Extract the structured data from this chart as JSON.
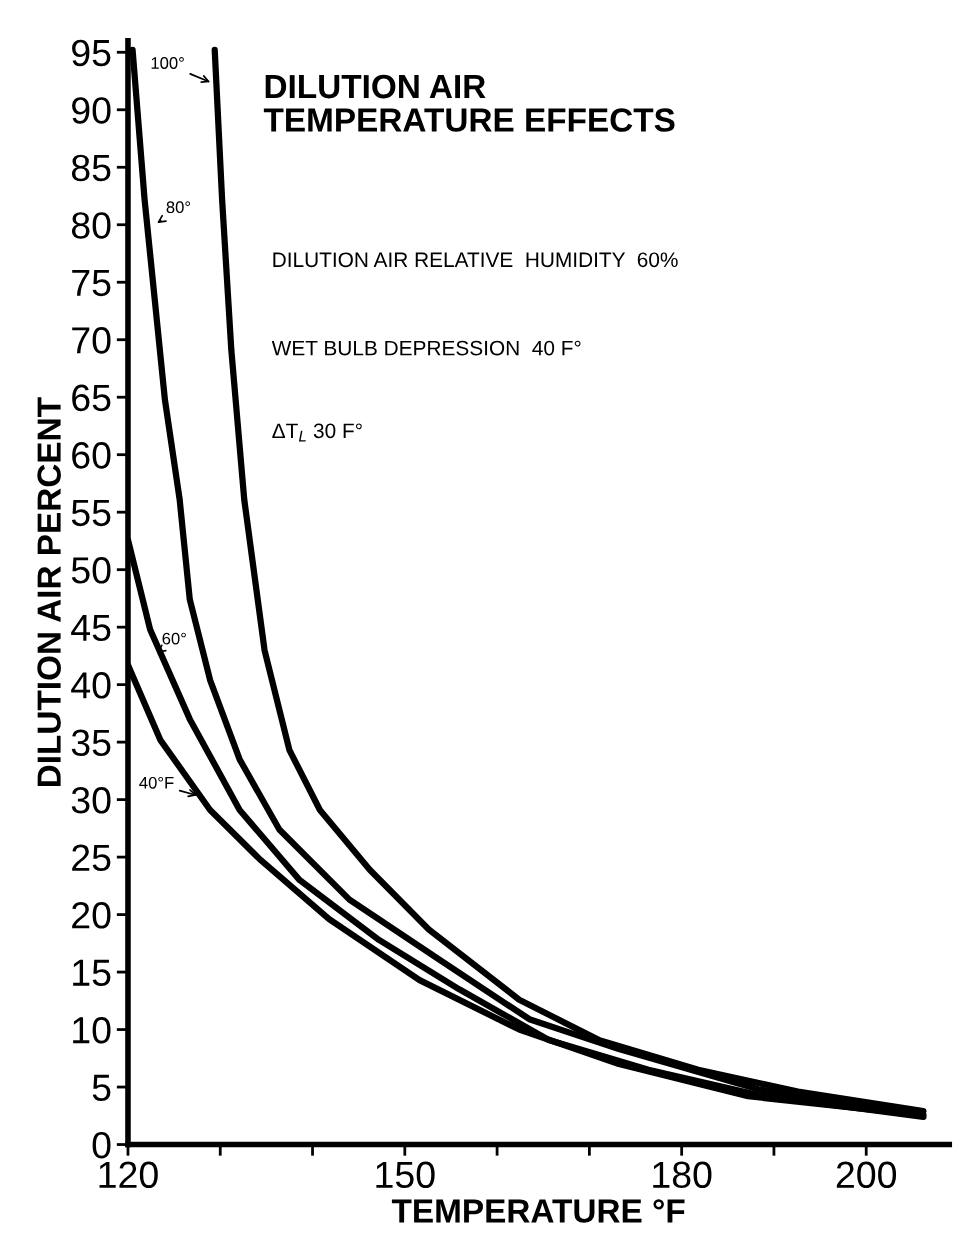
{
  "chart_data": {
    "type": "line",
    "title": "DILUTION AIR\nTEMPERATURE EFFECTS",
    "xlabel": "TEMPERATURE °F",
    "ylabel": "DILUTION AIR PERCENT",
    "annotations": [
      "DILUTION AIR RELATIVE  HUMIDITY  60%",
      "WET BULB DEPRESSION  40 F°",
      "ΔT$_{L}$ 30 F°",
      {
        "text": "100°",
        "x": 129.2,
        "y": 92.3
      },
      {
        "text": "80°",
        "x": 122.9,
        "y": 80
      },
      {
        "text": "60°",
        "x": 122.9,
        "y": 42.6
      },
      {
        "text": "40°F",
        "x": 127.8,
        "y": 30.3
      }
    ],
    "xlim": [
      120,
      209
    ],
    "xticks": [
      120,
      {
        "value": 130,
        "label": null
      },
      {
        "value": 140,
        "label": null
      },
      150,
      {
        "value": 160,
        "label": null
      },
      {
        "value": 170,
        "label": null
      },
      180,
      {
        "value": 190,
        "label": null
      },
      200
    ],
    "ylim": [
      0,
      96
    ],
    "yticks": [
      0,
      5,
      10,
      15,
      20,
      25,
      30,
      35,
      40,
      45,
      50,
      55,
      60,
      65,
      70,
      75,
      80,
      85,
      90,
      95
    ],
    "grid": false,
    "legend": false,
    "marker": "none",
    "line_style": "solid",
    "series": [
      {
        "color": "#000000",
        "x": [
          129.4,
          130.2,
          131.2,
          132.6,
          134.8,
          137.5,
          140.8,
          146.2,
          152.6,
          162.4,
          171,
          181.8,
          192.6,
          206.2
        ],
        "values": [
          95.2,
          82.2,
          69.1,
          56.1,
          43,
          34.3,
          29.1,
          23.9,
          18.7,
          12.6,
          9.1,
          6.5,
          4.6,
          2.9
        ]
      },
      {
        "color": "#000000",
        "x": [
          120.5,
          121.8,
          124,
          125.6,
          126.7,
          128.9,
          132.1,
          136.4,
          144,
          153.7,
          163.5,
          173.2,
          188.3,
          206.2
        ],
        "values": [
          95.2,
          82.2,
          64.8,
          56.1,
          47.4,
          40.4,
          33.5,
          27.4,
          21.3,
          16.1,
          10.9,
          8.3,
          4.8,
          2.6
        ]
      },
      {
        "color": "#000000",
        "x": [
          120,
          122.4,
          126.7,
          132.1,
          138.6,
          147.2,
          155.9,
          165.6,
          176.4,
          188.3,
          206.2
        ],
        "values": [
          52.6,
          44.8,
          37,
          29.1,
          23,
          17.8,
          13.5,
          9.1,
          6.5,
          4.3,
          2.4
        ]
      },
      {
        "color": "#000000",
        "x": [
          120,
          123.5,
          128.9,
          134.3,
          141.8,
          151.6,
          162.4,
          173.2,
          187.2,
          205.6
        ],
        "values": [
          41.7,
          35.2,
          29.1,
          24.8,
          19.6,
          14.3,
          10,
          7,
          4.2,
          2.6
        ]
      }
    ]
  }
}
